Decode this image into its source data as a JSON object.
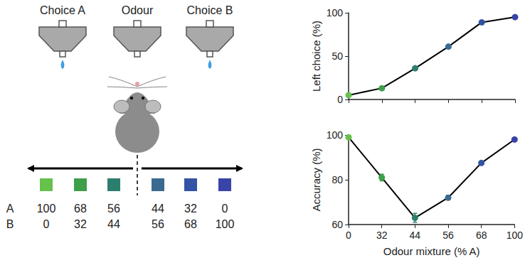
{
  "chart_data": [
    {
      "type": "line",
      "y_label": "Left choice (%)",
      "categories": [
        "0",
        "32",
        "44",
        "56",
        "68",
        "100"
      ],
      "values": [
        5,
        13,
        36,
        61,
        89,
        95
      ],
      "color": "#000000",
      "colors": [
        "#66c14d",
        "#3e9f49",
        "#2c7f6e",
        "#3a6a8f",
        "#3453a6",
        "#3a43a8"
      ],
      "marker": "circle",
      "ylim": [
        0,
        100
      ],
      "yticks": [
        0,
        50,
        100
      ],
      "tick_labels": "y",
      "grid": false
    },
    {
      "type": "line",
      "y_label": "Accuracy (%)",
      "x_label": "Odour mixture (% A)",
      "categories": [
        "0",
        "32",
        "44",
        "56",
        "68",
        "100"
      ],
      "values": [
        99,
        81,
        63,
        72,
        87.5,
        98
      ],
      "errors": [
        0.5,
        1.5,
        2,
        1,
        0.8,
        0.5
      ],
      "color": "#000000",
      "colors": [
        "#66c14d",
        "#3e9f49",
        "#2c7f6e",
        "#3a6a8f",
        "#3453a6",
        "#3a43a8"
      ],
      "marker": "circle",
      "ylim": [
        60,
        100
      ],
      "yticks": [
        60,
        80,
        100
      ],
      "grid": false
    }
  ],
  "diagram": {
    "ports": [
      "Choice A",
      "Odour",
      "Choice B"
    ],
    "mixtures": {
      "colors": [
        "#66c14d",
        "#3e9f49",
        "#2c7f6e",
        "#3a6a8f",
        "#3453a6",
        "#3a43a8"
      ],
      "rows": [
        {
          "label": "A",
          "values": [
            100,
            68,
            56,
            44,
            32,
            0
          ]
        },
        {
          "label": "B",
          "values": [
            0,
            32,
            44,
            56,
            68,
            100
          ]
        }
      ]
    }
  }
}
